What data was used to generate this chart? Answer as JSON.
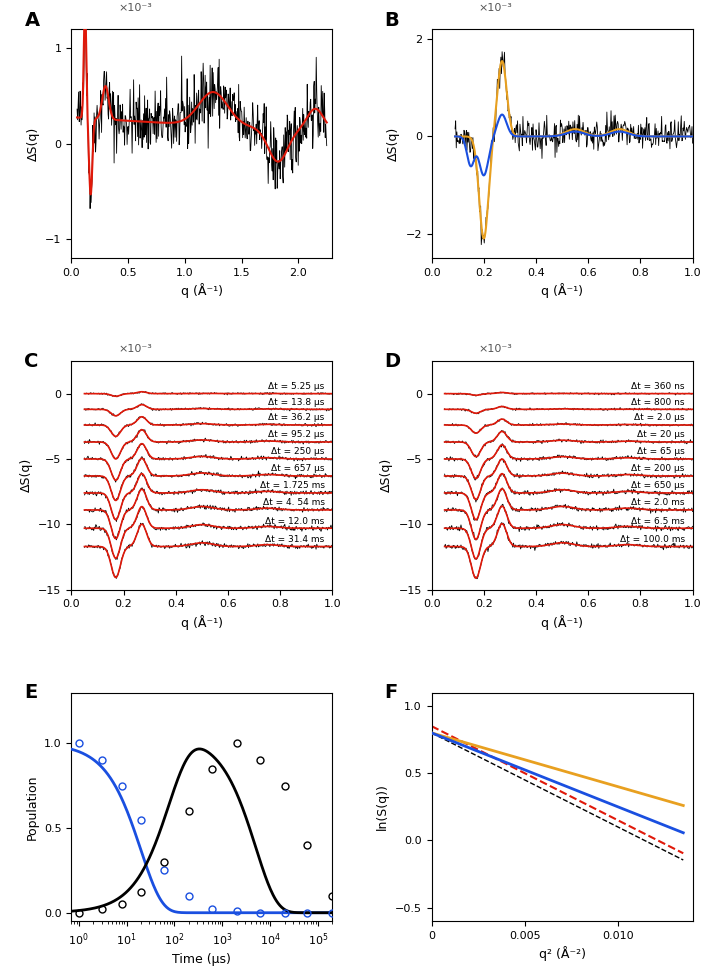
{
  "panel_A": {
    "xlim": [
      0,
      2.3
    ],
    "ylim": [
      -1.2,
      1.2
    ],
    "ylabel": "ΔS(q)",
    "xlabel": "q (Å⁻¹)",
    "yticks": [
      -1,
      0,
      1
    ],
    "xticks": [
      0,
      0.5,
      1.0,
      1.5,
      2.0
    ],
    "scale_label": "×10⁻³"
  },
  "panel_B": {
    "xlim": [
      0,
      1.0
    ],
    "ylim": [
      -2.5,
      2.2
    ],
    "ylabel": "ΔS(q)",
    "xlabel": "q (Å⁻¹)",
    "yticks": [
      -2,
      0,
      2
    ],
    "xticks": [
      0,
      0.2,
      0.4,
      0.6,
      0.8,
      1.0
    ],
    "scale_label": "×10⁻³"
  },
  "panel_C": {
    "xlim": [
      0,
      1.0
    ],
    "ylim": [
      -14.5,
      2.5
    ],
    "ylabel": "ΔS(q)",
    "xlabel": "q (Å⁻¹)",
    "yticks": [
      0,
      -5,
      -10,
      -15
    ],
    "xticks": [
      0,
      0.2,
      0.4,
      0.6,
      0.8,
      1.0
    ],
    "scale_label": "×10⁻³",
    "time_labels": [
      "Δt = 5.25 μs",
      "Δt = 13.8 μs",
      "Δt = 36.2 μs",
      "Δt = 95.2 μs",
      "Δt = 250 μs",
      "Δt = 657 μs",
      "Δt = 1.725 ms",
      "Δt = 4. 54 ms",
      "Δt = 12.0 ms",
      "Δt = 31.4 ms"
    ],
    "offsets": [
      0,
      -1.2,
      -2.4,
      -3.7,
      -5.0,
      -6.3,
      -7.6,
      -8.9,
      -10.3,
      -11.7
    ]
  },
  "panel_D": {
    "xlim": [
      0,
      1.0
    ],
    "ylim": [
      -14.5,
      2.5
    ],
    "ylabel": "ΔS(q)",
    "xlabel": "q (Å⁻¹)",
    "yticks": [
      0,
      -5,
      -10,
      -15
    ],
    "xticks": [
      0,
      0.2,
      0.4,
      0.6,
      0.8,
      1.0
    ],
    "scale_label": "×10⁻³",
    "time_labels": [
      "Δt = 360 ns",
      "Δt = 800 ns",
      "Δt = 2.0 μs",
      "Δt = 20 μs",
      "Δt = 65 μs",
      "Δt = 200 μs",
      "Δt = 650 μs",
      "Δt = 2.0 ms",
      "Δt = 6.5 ms",
      "Δt = 100.0 ms"
    ],
    "offsets": [
      0,
      -1.2,
      -2.4,
      -3.7,
      -5.0,
      -6.3,
      -7.6,
      -8.9,
      -10.3,
      -11.7
    ]
  },
  "panel_E": {
    "xlabel": "Time (μs)",
    "ylabel": "Population",
    "xlim_log": [
      0.7,
      200000
    ],
    "ylim": [
      -0.05,
      1.3
    ],
    "yticks": [
      0,
      0.5,
      1.0
    ],
    "t_pts_blue": [
      1.0,
      3.0,
      8.0,
      20,
      60,
      200,
      600,
      2000,
      6000,
      20000,
      60000,
      200000
    ],
    "y_pts_blue": [
      1.0,
      0.9,
      0.75,
      0.55,
      0.25,
      0.1,
      0.02,
      0.01,
      0.0,
      0.0,
      0.0,
      0.0
    ],
    "t_pts_black": [
      1.0,
      3.0,
      8.0,
      20,
      60,
      200,
      600,
      2000,
      6000,
      20000,
      60000,
      200000
    ],
    "y_pts_black": [
      0.0,
      0.02,
      0.05,
      0.12,
      0.3,
      0.6,
      0.85,
      1.0,
      0.9,
      0.75,
      0.4,
      0.1
    ]
  },
  "panel_F": {
    "xlabel": "q² (Å⁻²)",
    "ylabel": "ln(S(q))",
    "xlim": [
      0,
      0.014
    ],
    "ylim": [
      -0.6,
      1.1
    ],
    "xticks": [
      0,
      0.005,
      0.01
    ],
    "yticks": [
      -0.5,
      0,
      0.5,
      1.0
    ]
  },
  "colors": {
    "black": "#000000",
    "red": "#e0190a",
    "blue": "#1a4fe0",
    "orange": "#e8a020",
    "gray": "#888888"
  },
  "amps_C": [
    0.08,
    0.2,
    0.35,
    0.52,
    0.65,
    0.75,
    0.82,
    0.88,
    0.92,
    0.95
  ],
  "amps_D": [
    0.05,
    0.12,
    0.25,
    0.45,
    0.6,
    0.72,
    0.82,
    0.9,
    0.94,
    0.97
  ]
}
